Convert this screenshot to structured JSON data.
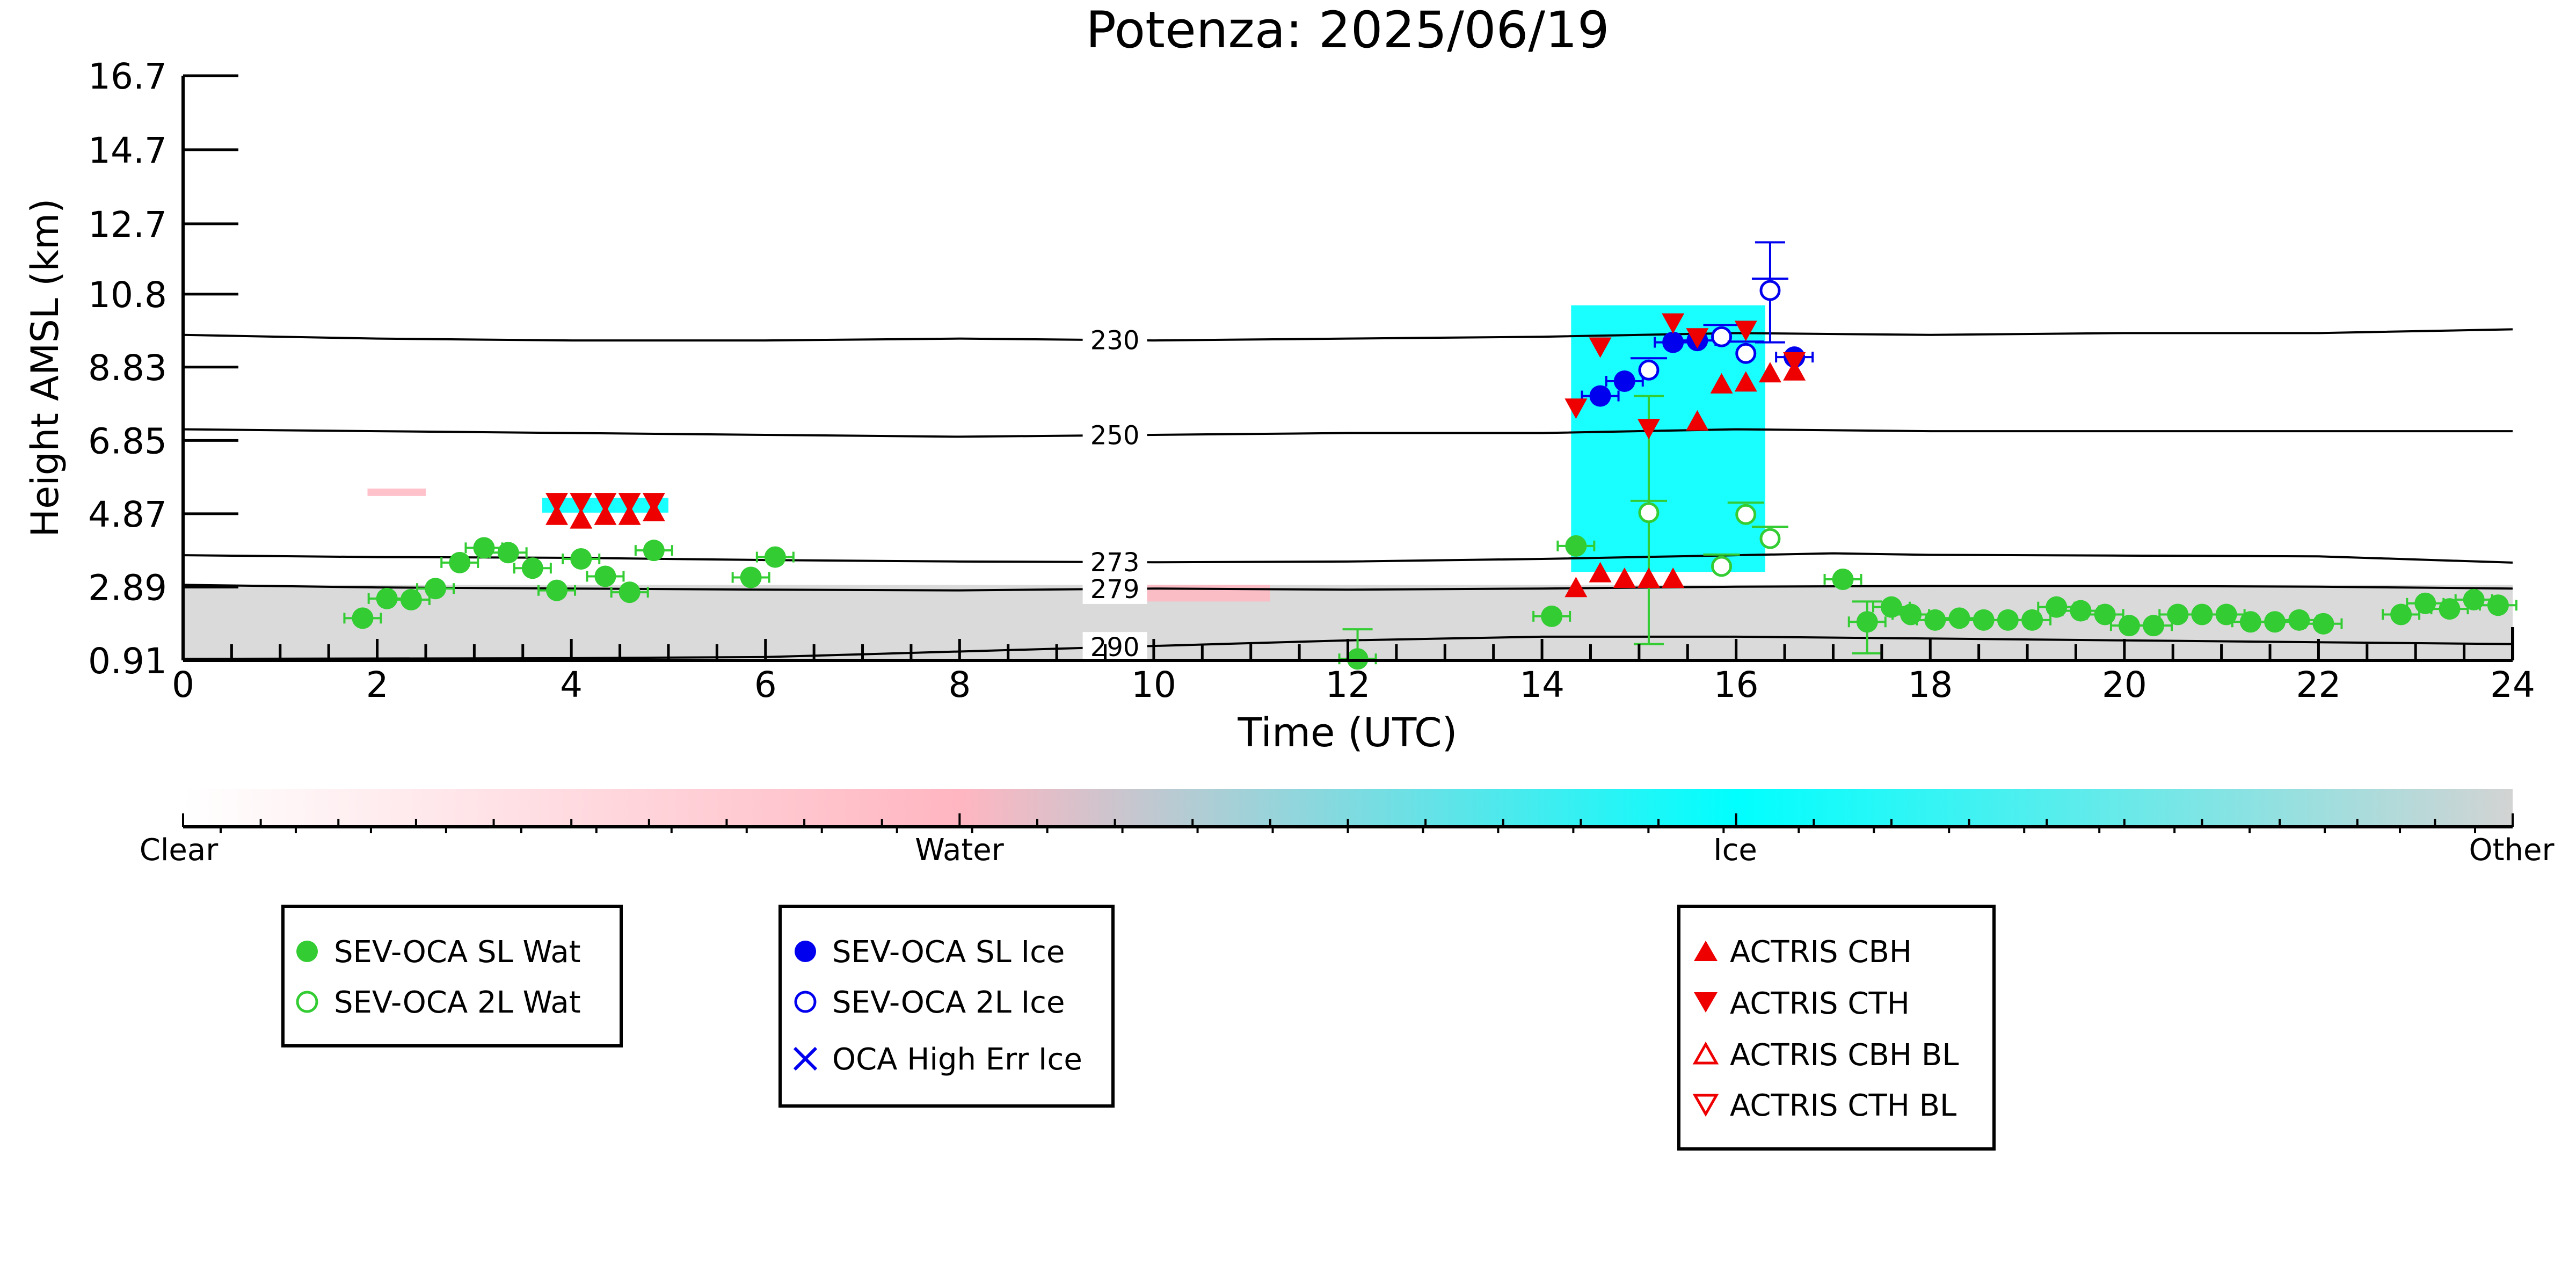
{
  "chart_data": {
    "type": "scatter",
    "title": "Potenza: 2025/06/19",
    "xlabel": "Time (UTC)",
    "ylabel": "Height AMSL (km)",
    "xlim": [
      0,
      24
    ],
    "ylim": [
      0.91,
      16.7
    ],
    "xticks": [
      0,
      2,
      4,
      6,
      8,
      10,
      12,
      14,
      16,
      18,
      20,
      22,
      24
    ],
    "xtick_labels": [
      "0",
      "2",
      "4",
      "6",
      "8",
      "10",
      "12",
      "14",
      "16",
      "18",
      "20",
      "22",
      "24"
    ],
    "yticks": [
      0.91,
      2.89,
      4.87,
      6.85,
      8.83,
      10.8,
      12.7,
      14.7,
      16.7
    ],
    "ytick_labels": [
      "0.91",
      "2.89",
      "4.87",
      "6.85",
      "8.83",
      "10.8",
      "12.7",
      "14.7",
      "16.7"
    ],
    "grid": false,
    "colorbar": {
      "labels": [
        "Clear",
        "Water",
        "Ice",
        "Other"
      ],
      "stops": [
        "#ffffff",
        "#ffb6c1",
        "#00ffff",
        "#d3d3d3"
      ]
    },
    "isotherms": [
      {
        "label": "230",
        "label_x": 9.6,
        "points": [
          [
            0,
            9.7
          ],
          [
            2,
            9.6
          ],
          [
            4,
            9.55
          ],
          [
            6,
            9.55
          ],
          [
            8,
            9.6
          ],
          [
            10,
            9.55
          ],
          [
            12,
            9.6
          ],
          [
            14,
            9.65
          ],
          [
            16,
            9.75
          ],
          [
            18,
            9.7
          ],
          [
            20,
            9.75
          ],
          [
            22,
            9.75
          ],
          [
            24,
            9.85
          ]
        ]
      },
      {
        "label": "250",
        "label_x": 9.6,
        "points": [
          [
            0,
            7.15
          ],
          [
            2,
            7.1
          ],
          [
            4,
            7.05
          ],
          [
            6,
            7.0
          ],
          [
            8,
            6.95
          ],
          [
            10,
            7.0
          ],
          [
            12,
            7.05
          ],
          [
            14,
            7.05
          ],
          [
            16,
            7.15
          ],
          [
            18,
            7.1
          ],
          [
            20,
            7.1
          ],
          [
            22,
            7.1
          ],
          [
            24,
            7.1
          ]
        ]
      },
      {
        "label": "273",
        "label_x": 9.6,
        "points": [
          [
            0,
            3.75
          ],
          [
            2,
            3.7
          ],
          [
            4,
            3.68
          ],
          [
            6,
            3.62
          ],
          [
            8,
            3.58
          ],
          [
            10,
            3.56
          ],
          [
            12,
            3.58
          ],
          [
            14,
            3.65
          ],
          [
            16,
            3.75
          ],
          [
            17,
            3.8
          ],
          [
            18,
            3.76
          ],
          [
            20,
            3.74
          ],
          [
            22,
            3.72
          ],
          [
            24,
            3.55
          ]
        ]
      },
      {
        "label": "279",
        "label_x": 9.6,
        "points": [
          [
            0,
            2.95
          ],
          [
            2,
            2.88
          ],
          [
            4,
            2.85
          ],
          [
            6,
            2.82
          ],
          [
            8,
            2.8
          ],
          [
            10,
            2.85
          ],
          [
            12,
            2.82
          ],
          [
            14,
            2.85
          ],
          [
            16,
            2.9
          ],
          [
            18,
            2.92
          ],
          [
            20,
            2.92
          ],
          [
            22,
            2.9
          ],
          [
            24,
            2.85
          ]
        ]
      },
      {
        "label": "290",
        "label_x": 9.6,
        "points": [
          [
            0,
            0.95
          ],
          [
            2,
            0.96
          ],
          [
            4,
            0.97
          ],
          [
            6,
            1.0
          ],
          [
            8,
            1.15
          ],
          [
            10,
            1.3
          ],
          [
            12,
            1.45
          ],
          [
            14,
            1.55
          ],
          [
            16,
            1.55
          ],
          [
            18,
            1.5
          ],
          [
            20,
            1.45
          ],
          [
            22,
            1.4
          ],
          [
            24,
            1.35
          ]
        ]
      }
    ],
    "background_regions": [
      {
        "class": "Other",
        "x0": 0,
        "x1": 24,
        "y0": 0.91,
        "y1": 2.95
      },
      {
        "class": "Ice",
        "x0": 14.3,
        "x1": 16.3,
        "y0": 3.3,
        "y1": 10.5
      },
      {
        "class": "Ice",
        "x0": 3.7,
        "x1": 5.0,
        "y0": 4.9,
        "y1": 5.3
      },
      {
        "class": "Water",
        "x0": 1.9,
        "x1": 2.5,
        "y0": 5.35,
        "y1": 5.55
      },
      {
        "class": "Water",
        "x0": 9.9,
        "x1": 11.2,
        "y0": 2.5,
        "y1": 2.95
      }
    ],
    "series": [
      {
        "name": "SEV-OCA SL Wat",
        "marker": "circle-filled",
        "color": "#33cc33",
        "points": [
          [
            1.85,
            2.05
          ],
          [
            2.1,
            2.58
          ],
          [
            2.35,
            2.55
          ],
          [
            2.6,
            2.85
          ],
          [
            2.85,
            3.55
          ],
          [
            3.1,
            3.95
          ],
          [
            3.35,
            3.82
          ],
          [
            3.6,
            3.4
          ],
          [
            3.85,
            2.8
          ],
          [
            4.1,
            3.65
          ],
          [
            4.35,
            3.18
          ],
          [
            4.6,
            2.75
          ],
          [
            4.85,
            3.88
          ],
          [
            5.85,
            3.15
          ],
          [
            6.1,
            3.7
          ],
          [
            12.1,
            0.95
          ],
          [
            14.1,
            2.1
          ],
          [
            14.35,
            4.0
          ],
          [
            17.1,
            3.1
          ],
          [
            17.35,
            1.95
          ],
          [
            17.6,
            2.35
          ],
          [
            17.8,
            2.15
          ],
          [
            18.05,
            2.0
          ],
          [
            18.3,
            2.05
          ],
          [
            18.55,
            2.0
          ],
          [
            18.8,
            2.0
          ],
          [
            19.05,
            2.0
          ],
          [
            19.3,
            2.35
          ],
          [
            19.55,
            2.25
          ],
          [
            19.8,
            2.15
          ],
          [
            20.05,
            1.85
          ],
          [
            20.3,
            1.85
          ],
          [
            20.55,
            2.15
          ],
          [
            20.8,
            2.15
          ],
          [
            21.05,
            2.15
          ],
          [
            21.3,
            1.95
          ],
          [
            21.55,
            1.95
          ],
          [
            21.8,
            2.0
          ],
          [
            22.05,
            1.9
          ],
          [
            22.85,
            2.15
          ],
          [
            23.1,
            2.45
          ],
          [
            23.35,
            2.3
          ],
          [
            23.6,
            2.55
          ],
          [
            23.85,
            2.4
          ]
        ]
      },
      {
        "name": "SEV-OCA 2L Wat",
        "marker": "circle-open",
        "color": "#33cc33",
        "points": [
          [
            15.1,
            4.9
          ],
          [
            15.85,
            3.45
          ],
          [
            16.1,
            4.85
          ],
          [
            16.35,
            4.2
          ]
        ]
      },
      {
        "name": "SEV-OCA SL Ice",
        "marker": "circle-filled",
        "color": "#0000ee",
        "points": [
          [
            14.6,
            8.05
          ],
          [
            14.85,
            8.45
          ],
          [
            15.35,
            9.5
          ],
          [
            15.6,
            9.55
          ],
          [
            16.6,
            9.1
          ]
        ]
      },
      {
        "name": "SEV-OCA 2L Ice",
        "marker": "circle-open",
        "color": "#0000ee",
        "points": [
          [
            15.1,
            8.75
          ],
          [
            15.85,
            9.65
          ],
          [
            16.1,
            9.2
          ],
          [
            16.35,
            10.9
          ]
        ]
      },
      {
        "name": "OCA High Err Ice",
        "marker": "x",
        "color": "#0000ee",
        "points": []
      },
      {
        "name": "ACTRIS CBH",
        "marker": "triangle-up-filled",
        "color": "#ee0000",
        "points": [
          [
            14.35,
            2.85
          ],
          [
            14.6,
            3.25
          ],
          [
            14.85,
            3.1
          ],
          [
            15.1,
            3.1
          ],
          [
            15.35,
            3.1
          ],
          [
            15.6,
            7.35
          ],
          [
            15.85,
            8.35
          ],
          [
            16.1,
            8.4
          ],
          [
            16.35,
            8.65
          ],
          [
            16.6,
            8.7
          ]
        ]
      },
      {
        "name": "ACTRIS CTH",
        "marker": "triangle-down-filled",
        "color": "#ee0000",
        "points": [
          [
            3.85,
            5.2
          ],
          [
            4.1,
            5.2
          ],
          [
            4.35,
            5.2
          ],
          [
            4.6,
            5.2
          ],
          [
            4.85,
            5.2
          ],
          [
            14.35,
            7.75
          ],
          [
            14.6,
            9.4
          ],
          [
            15.1,
            7.2
          ],
          [
            15.35,
            10.05
          ],
          [
            15.6,
            9.65
          ],
          [
            16.1,
            9.85
          ],
          [
            16.6,
            9.0
          ]
        ]
      },
      {
        "name": "ACTRIS CBH BL",
        "marker": "triangle-up-open",
        "color": "#ee0000",
        "points": []
      },
      {
        "name": "ACTRIS CTH BL",
        "marker": "triangle-down-open",
        "color": "#ee0000",
        "points": []
      }
    ],
    "lower_triangles": [
      [
        3.85,
        4.8
      ],
      [
        4.1,
        4.7
      ],
      [
        4.35,
        4.8
      ],
      [
        4.6,
        4.8
      ],
      [
        4.85,
        4.9
      ]
    ],
    "vertical_errorbars": [
      {
        "x": 15.1,
        "y0": 1.35,
        "y1": 8.05,
        "color": "#33cc33"
      },
      {
        "x": 16.35,
        "y0": 9.5,
        "y1": 12.2,
        "color": "#0000ee"
      },
      {
        "x": 12.1,
        "y0": 0.91,
        "y1": 1.75,
        "color": "#33cc33"
      },
      {
        "x": 17.35,
        "y0": 1.1,
        "y1": 2.5,
        "color": "#33cc33"
      }
    ],
    "legends": [
      {
        "items": [
          "SEV-OCA SL Wat",
          "SEV-OCA 2L Wat"
        ]
      },
      {
        "items": [
          "SEV-OCA SL Ice",
          "SEV-OCA 2L Ice",
          "OCA High Err Ice"
        ]
      },
      {
        "items": [
          "ACTRIS CBH",
          "ACTRIS CTH",
          "ACTRIS CBH BL",
          "ACTRIS CTH BL"
        ]
      }
    ]
  }
}
